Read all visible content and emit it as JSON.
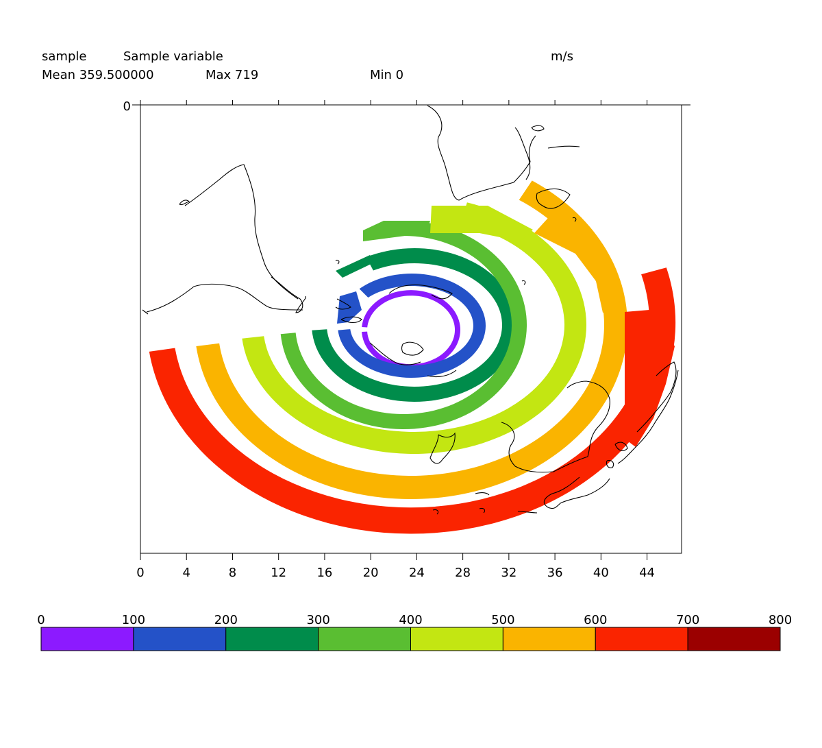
{
  "header": {
    "var_name": "sample",
    "long_name": "Sample variable",
    "units": "m/s",
    "mean_label": "Mean 359.500000",
    "max_label": "Max 719",
    "min_label": "Min 0"
  },
  "chart_data": {
    "type": "heatmap",
    "projection": "polar stereographic (south pole)",
    "x_ticks": [
      "0",
      "4",
      "8",
      "12",
      "16",
      "20",
      "24",
      "28",
      "32",
      "36",
      "40",
      "44"
    ],
    "y_ticks": [
      "0"
    ],
    "xlim": [
      0,
      47
    ],
    "grid": false,
    "rings": [
      {
        "range": "0-100",
        "color": "#8c1aff"
      },
      {
        "range": "100-200",
        "color": "#2452c8"
      },
      {
        "range": "200-300",
        "color": "#008c4b"
      },
      {
        "range": "300-400",
        "color": "#5abe32"
      },
      {
        "range": "400-500",
        "color": "#c3e612"
      },
      {
        "range": "500-600",
        "color": "#fab400"
      },
      {
        "range": "600-700",
        "color": "#fa2400"
      }
    ],
    "colorbar": {
      "labels": [
        "0",
        "100",
        "200",
        "300",
        "400",
        "500",
        "600",
        "700",
        "800"
      ],
      "colors": [
        "#8c1aff",
        "#2452c8",
        "#008c4b",
        "#5abe32",
        "#c3e612",
        "#fab400",
        "#fa2400",
        "#9b0000"
      ]
    }
  }
}
